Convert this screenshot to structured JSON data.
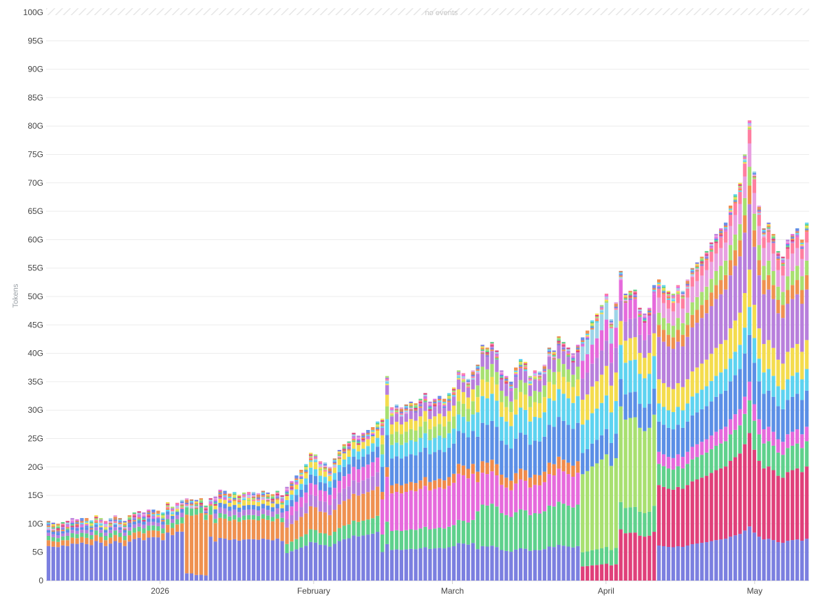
{
  "chart_data": {
    "type": "bar",
    "stacked": true,
    "events_label": "no events",
    "ylabel": "Tokens",
    "xlabel": "",
    "ylim": [
      0,
      100
    ],
    "y_unit": "G",
    "y_ticks": [
      0,
      5,
      10,
      15,
      20,
      25,
      30,
      35,
      40,
      45,
      50,
      55,
      60,
      65,
      70,
      75,
      80,
      85,
      90,
      95,
      100
    ],
    "y_tick_labels": [
      "0",
      "5G",
      "10G",
      "15G",
      "20G",
      "25G",
      "30G",
      "35G",
      "40G",
      "45G",
      "50G",
      "55G",
      "60G",
      "65G",
      "70G",
      "75G",
      "80G",
      "85G",
      "90G",
      "95G",
      "100G"
    ],
    "x_range": [
      "2025-12-09",
      "2026-05-12"
    ],
    "x_ticks": [
      {
        "date": "2026-01-01",
        "label": "2026"
      },
      {
        "date": "2026-02-01",
        "label": "February"
      },
      {
        "date": "2026-03-01",
        "label": "March"
      },
      {
        "date": "2026-04-01",
        "label": "April"
      },
      {
        "date": "2026-05-01",
        "label": "May"
      }
    ],
    "grid": true,
    "legend": "none",
    "series_colors": [
      "#7b7fe0",
      "#ef9150",
      "#5fd18c",
      "#e0407a",
      "#b87fdc",
      "#e66adc",
      "#5b8fe6",
      "#f08a4b",
      "#5ed3f0",
      "#f4dc4e",
      "#a8e070",
      "#ff7fa0",
      "#9dd4e8",
      "#e8a0e0",
      "#cc8866"
    ],
    "total_gtokens": [
      10.5,
      10.2,
      10,
      10.3,
      10.5,
      11,
      10.8,
      11,
      11,
      10.6,
      11.5,
      11,
      10.5,
      11,
      11.5,
      11,
      10.5,
      11.5,
      12,
      12.2,
      12,
      12.5,
      12.5,
      12.3,
      12,
      13.8,
      13,
      13.7,
      14.2,
      14.5,
      14.3,
      14.2,
      14.5,
      13.2,
      14.5,
      14.8,
      16,
      15.8,
      15.3,
      15.6,
      15.1,
      15.5,
      15.6,
      15.6,
      15.4,
      15.8,
      15.5,
      15.2,
      15.8,
      15,
      16.5,
      17.5,
      18.5,
      19.5,
      20.5,
      22.5,
      22.2,
      21,
      20.8,
      20,
      21.5,
      23,
      24,
      24.5,
      26,
      25.5,
      26,
      26.5,
      27,
      28,
      28.5,
      36,
      30.5,
      31,
      30.5,
      31,
      31.5,
      31.2,
      32,
      33,
      31.5,
      32,
      32.5,
      32,
      33,
      34,
      37,
      36.5,
      35.5,
      37,
      38,
      41.5,
      41,
      42,
      40.5,
      37,
      36,
      35,
      37.5,
      39,
      38.5,
      36,
      37,
      36.8,
      38,
      41,
      40.5,
      43,
      42,
      41,
      40,
      41.5,
      42.8,
      44,
      45.8,
      47,
      48.5,
      50.5,
      46,
      49,
      54.5,
      50.5,
      51,
      51.2,
      48,
      47,
      48,
      52,
      53,
      52,
      51,
      50.5,
      52,
      51,
      53,
      55,
      56,
      57,
      58,
      59.5,
      61,
      62,
      63,
      66,
      68,
      70,
      75,
      81,
      72,
      66,
      62,
      63,
      61,
      58,
      57,
      60,
      61,
      62,
      60,
      63
    ]
  }
}
